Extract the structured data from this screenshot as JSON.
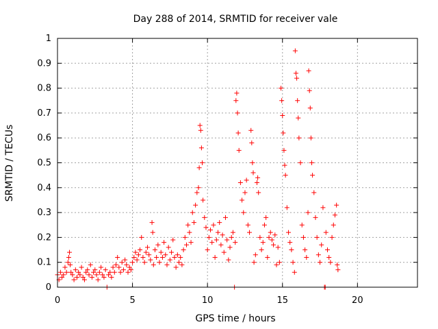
{
  "chart_data": {
    "type": "scatter",
    "title": "Day 288 of 2014, SRMTID for receiver vale",
    "xlabel": "GPS time / hours",
    "ylabel": "SRMTID / TECUs",
    "xlim": [
      0,
      24
    ],
    "ylim": [
      0,
      1
    ],
    "xticks": [
      "0",
      "5",
      "10",
      "15",
      "20"
    ],
    "yticks": [
      "0",
      "0.1",
      "0.2",
      "0.3",
      "0.4",
      "0.5",
      "0.6",
      "0.7",
      "0.8",
      "0.9",
      "1"
    ],
    "grid": true,
    "marker": "+",
    "colors": {
      "series": "#ff0000",
      "axis": "#000000",
      "grid": "#a0a0a0"
    },
    "series": [
      {
        "name": "SRMTID",
        "points": [
          [
            0.0,
            0.05
          ],
          [
            0.1,
            0.03
          ],
          [
            0.2,
            0.06
          ],
          [
            0.3,
            0.04
          ],
          [
            0.4,
            0.05
          ],
          [
            0.5,
            0.08
          ],
          [
            0.6,
            0.06
          ],
          [
            0.7,
            0.1
          ],
          [
            0.75,
            0.12
          ],
          [
            0.8,
            0.14
          ],
          [
            0.85,
            0.09
          ],
          [
            0.9,
            0.06
          ],
          [
            1.0,
            0.05
          ],
          [
            1.1,
            0.03
          ],
          [
            1.2,
            0.07
          ],
          [
            1.3,
            0.04
          ],
          [
            1.4,
            0.06
          ],
          [
            1.5,
            0.05
          ],
          [
            1.6,
            0.08
          ],
          [
            1.7,
            0.04
          ],
          [
            1.8,
            0.03
          ],
          [
            1.9,
            0.06
          ],
          [
            2.0,
            0.07
          ],
          [
            2.1,
            0.05
          ],
          [
            2.2,
            0.09
          ],
          [
            2.3,
            0.04
          ],
          [
            2.4,
            0.06
          ],
          [
            2.5,
            0.07
          ],
          [
            2.6,
            0.05
          ],
          [
            2.7,
            0.03
          ],
          [
            2.8,
            0.06
          ],
          [
            2.9,
            0.08
          ],
          [
            3.0,
            0.05
          ],
          [
            3.1,
            0.04
          ],
          [
            3.2,
            0.07
          ],
          [
            3.3,
            0.0
          ],
          [
            3.4,
            0.05
          ],
          [
            3.5,
            0.06
          ],
          [
            3.6,
            0.04
          ],
          [
            3.7,
            0.08
          ],
          [
            3.8,
            0.06
          ],
          [
            3.9,
            0.09
          ],
          [
            4.0,
            0.12
          ],
          [
            4.1,
            0.08
          ],
          [
            4.2,
            0.06
          ],
          [
            4.3,
            0.1
          ],
          [
            4.4,
            0.07
          ],
          [
            4.5,
            0.11
          ],
          [
            4.6,
            0.09
          ],
          [
            4.7,
            0.06
          ],
          [
            4.8,
            0.08
          ],
          [
            4.9,
            0.07
          ],
          [
            5.0,
            0.1
          ],
          [
            5.1,
            0.12
          ],
          [
            5.2,
            0.14
          ],
          [
            5.3,
            0.11
          ],
          [
            5.4,
            0.13
          ],
          [
            5.5,
            0.15
          ],
          [
            5.6,
            0.2
          ],
          [
            5.7,
            0.12
          ],
          [
            5.8,
            0.1
          ],
          [
            5.9,
            0.14
          ],
          [
            6.0,
            0.16
          ],
          [
            6.1,
            0.13
          ],
          [
            6.2,
            0.11
          ],
          [
            6.3,
            0.26
          ],
          [
            6.35,
            0.22
          ],
          [
            6.4,
            0.09
          ],
          [
            6.5,
            0.15
          ],
          [
            6.6,
            0.12
          ],
          [
            6.7,
            0.17
          ],
          [
            6.8,
            0.1
          ],
          [
            6.9,
            0.14
          ],
          [
            7.0,
            0.12
          ],
          [
            7.1,
            0.18
          ],
          [
            7.2,
            0.13
          ],
          [
            7.3,
            0.09
          ],
          [
            7.4,
            0.16
          ],
          [
            7.5,
            0.11
          ],
          [
            7.6,
            0.14
          ],
          [
            7.7,
            0.19
          ],
          [
            7.8,
            0.12
          ],
          [
            7.9,
            0.08
          ],
          [
            8.0,
            0.13
          ],
          [
            8.1,
            0.1
          ],
          [
            8.2,
            0.12
          ],
          [
            8.3,
            0.09
          ],
          [
            8.4,
            0.15
          ],
          [
            8.5,
            0.2
          ],
          [
            8.6,
            0.17
          ],
          [
            8.7,
            0.25
          ],
          [
            8.8,
            0.22
          ],
          [
            8.9,
            0.18
          ],
          [
            9.0,
            0.3
          ],
          [
            9.1,
            0.26
          ],
          [
            9.2,
            0.33
          ],
          [
            9.3,
            0.38
          ],
          [
            9.4,
            0.4
          ],
          [
            9.45,
            0.48
          ],
          [
            9.5,
            0.65
          ],
          [
            9.55,
            0.63
          ],
          [
            9.6,
            0.56
          ],
          [
            9.65,
            0.5
          ],
          [
            9.7,
            0.35
          ],
          [
            9.8,
            0.28
          ],
          [
            9.9,
            0.24
          ],
          [
            10.0,
            0.15
          ],
          [
            10.1,
            0.2
          ],
          [
            10.2,
            0.23
          ],
          [
            10.3,
            0.18
          ],
          [
            10.4,
            0.25
          ],
          [
            10.5,
            0.12
          ],
          [
            10.6,
            0.19
          ],
          [
            10.7,
            0.22
          ],
          [
            10.8,
            0.26
          ],
          [
            10.9,
            0.17
          ],
          [
            11.0,
            0.21
          ],
          [
            11.1,
            0.14
          ],
          [
            11.2,
            0.28
          ],
          [
            11.3,
            0.19
          ],
          [
            11.4,
            0.11
          ],
          [
            11.5,
            0.16
          ],
          [
            11.6,
            0.2
          ],
          [
            11.7,
            0.22
          ],
          [
            11.8,
            0.0
          ],
          [
            11.85,
            0.18
          ],
          [
            11.9,
            0.75
          ],
          [
            11.95,
            0.78
          ],
          [
            12.0,
            0.7
          ],
          [
            12.05,
            0.62
          ],
          [
            12.1,
            0.55
          ],
          [
            12.2,
            0.42
          ],
          [
            12.3,
            0.35
          ],
          [
            12.4,
            0.3
          ],
          [
            12.5,
            0.38
          ],
          [
            12.6,
            0.43
          ],
          [
            12.7,
            0.25
          ],
          [
            12.8,
            0.22
          ],
          [
            12.9,
            0.63
          ],
          [
            12.95,
            0.58
          ],
          [
            13.0,
            0.5
          ],
          [
            13.05,
            0.46
          ],
          [
            13.1,
            0.1
          ],
          [
            13.2,
            0.13
          ],
          [
            13.3,
            0.42
          ],
          [
            13.35,
            0.44
          ],
          [
            13.4,
            0.38
          ],
          [
            13.5,
            0.2
          ],
          [
            13.6,
            0.15
          ],
          [
            13.7,
            0.18
          ],
          [
            13.8,
            0.25
          ],
          [
            13.9,
            0.28
          ],
          [
            14.0,
            0.12
          ],
          [
            14.1,
            0.2
          ],
          [
            14.2,
            0.22
          ],
          [
            14.3,
            0.19
          ],
          [
            14.4,
            0.17
          ],
          [
            14.5,
            0.21
          ],
          [
            14.6,
            0.09
          ],
          [
            14.7,
            0.16
          ],
          [
            14.8,
            0.1
          ],
          [
            14.9,
            0.8
          ],
          [
            14.95,
            0.75
          ],
          [
            15.0,
            0.69
          ],
          [
            15.05,
            0.62
          ],
          [
            15.1,
            0.55
          ],
          [
            15.15,
            0.49
          ],
          [
            15.2,
            0.45
          ],
          [
            15.3,
            0.32
          ],
          [
            15.4,
            0.22
          ],
          [
            15.5,
            0.18
          ],
          [
            15.6,
            0.15
          ],
          [
            15.7,
            0.1
          ],
          [
            15.8,
            0.06
          ],
          [
            15.85,
            0.95
          ],
          [
            15.9,
            0.86
          ],
          [
            15.95,
            0.84
          ],
          [
            16.0,
            0.75
          ],
          [
            16.05,
            0.68
          ],
          [
            16.1,
            0.6
          ],
          [
            16.2,
            0.5
          ],
          [
            16.3,
            0.25
          ],
          [
            16.4,
            0.2
          ],
          [
            16.5,
            0.15
          ],
          [
            16.6,
            0.12
          ],
          [
            16.7,
            0.3
          ],
          [
            16.75,
            0.87
          ],
          [
            16.8,
            0.79
          ],
          [
            16.85,
            0.72
          ],
          [
            16.9,
            0.6
          ],
          [
            16.95,
            0.5
          ],
          [
            17.0,
            0.45
          ],
          [
            17.1,
            0.38
          ],
          [
            17.2,
            0.28
          ],
          [
            17.3,
            0.2
          ],
          [
            17.4,
            0.13
          ],
          [
            17.5,
            0.1
          ],
          [
            17.6,
            0.17
          ],
          [
            17.7,
            0.32
          ],
          [
            17.8,
            0.0
          ],
          [
            17.85,
            0.0
          ],
          [
            17.9,
            0.22
          ],
          [
            18.0,
            0.15
          ],
          [
            18.1,
            0.12
          ],
          [
            18.2,
            0.1
          ],
          [
            18.3,
            0.2
          ],
          [
            18.4,
            0.25
          ],
          [
            18.5,
            0.29
          ],
          [
            18.6,
            0.33
          ],
          [
            18.65,
            0.09
          ],
          [
            18.7,
            0.07
          ]
        ]
      }
    ]
  }
}
